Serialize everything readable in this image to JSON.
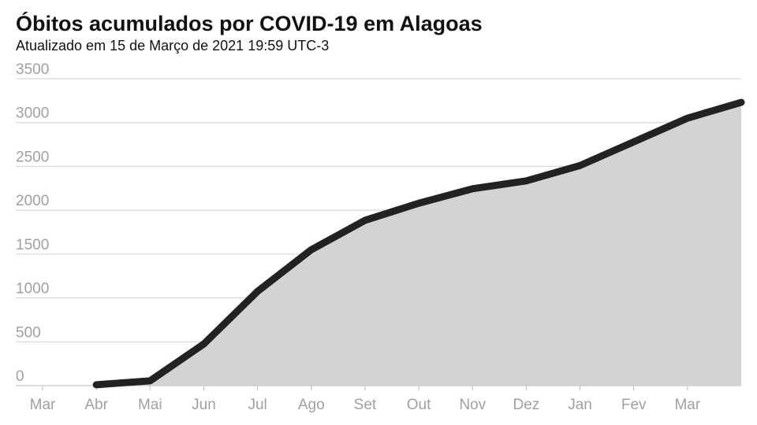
{
  "chart_data": {
    "type": "area",
    "title": "Óbitos acumulados por COVID-19 em Alagoas",
    "subtitle": "Atualizado em 15 de Março de 2021 19:59 UTC-3",
    "categories": [
      "Mar",
      "Abr",
      "Mai",
      "Jun",
      "Jul",
      "Ago",
      "Set",
      "Out",
      "Nov",
      "Dez",
      "Jan",
      "Fev",
      "Mar",
      null
    ],
    "values": [
      null,
      10,
      55,
      475,
      1075,
      1550,
      1885,
      2080,
      2245,
      2335,
      2510,
      2780,
      3050,
      3230
    ],
    "color": "#222222",
    "fill": "#d3d3d3",
    "ylim": [
      0,
      3500
    ],
    "yticks": [
      0,
      500,
      1000,
      1500,
      2000,
      2500,
      3000,
      3500
    ],
    "grid": true
  }
}
